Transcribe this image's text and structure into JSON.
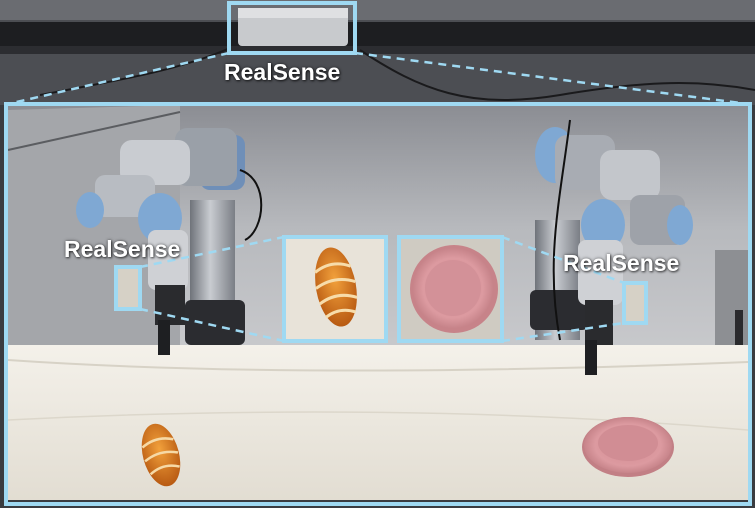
{
  "labels": {
    "top_camera": "RealSense",
    "left_wrist_camera": "RealSense",
    "right_wrist_camera": "RealSense"
  },
  "colors": {
    "highlight": "#9fd9f2",
    "wall": "#b9bbbf",
    "table": "#ece8df",
    "robot_joint_blue": "#7fa8d3",
    "robot_body": "#9a9ea6",
    "bread": "#d9791f",
    "plate": "#d99a9e"
  },
  "objects": [
    "bread",
    "plate"
  ]
}
